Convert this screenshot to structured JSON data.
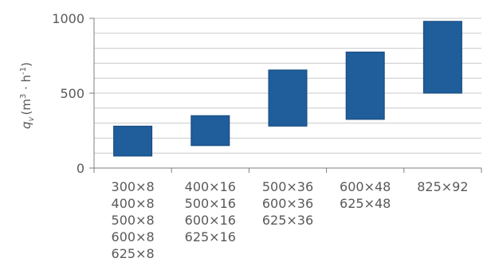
{
  "chart_data": {
    "type": "bar",
    "subtype": "floating-range",
    "ylabel": {
      "symbol": "q",
      "subscript": "v",
      "unit_prefix": "(m",
      "unit_sup1": "3",
      "unit_mid": " · h",
      "unit_sup2": "-1",
      "unit_suffix": ")"
    },
    "ylim": [
      0,
      1000
    ],
    "yticks": [
      0,
      500,
      1000
    ],
    "grid": true,
    "grid_step": 100,
    "categories": [
      [
        "300×8",
        "400×8",
        "500×8",
        "600×8",
        "625×8"
      ],
      [
        "400×16",
        "500×16",
        "600×16",
        "625×16"
      ],
      [
        "500×36",
        "600×36",
        "625×36"
      ],
      [
        "600×48",
        "625×48"
      ],
      [
        "825×92"
      ]
    ],
    "series": [
      {
        "ranges": [
          [
            80,
            280
          ],
          [
            150,
            350
          ],
          [
            280,
            655
          ],
          [
            325,
            775
          ],
          [
            500,
            980
          ]
        ]
      }
    ],
    "colors": {
      "bar": "#1f5d9b",
      "bar_edge": "#17497c",
      "grid": "#c9c9c9",
      "axis": "#7f7f7f"
    }
  }
}
